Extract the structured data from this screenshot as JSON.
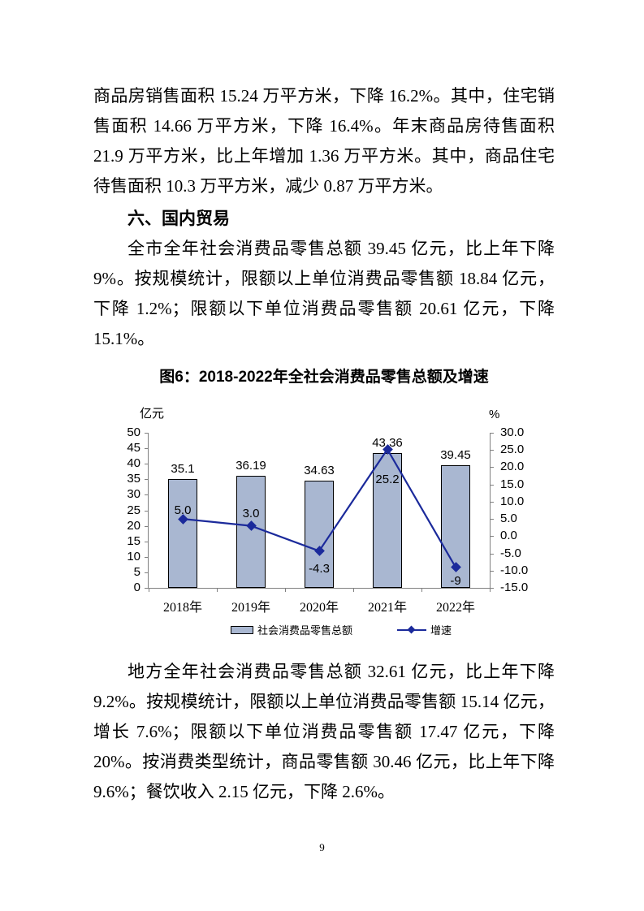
{
  "page": {
    "number": "9"
  },
  "document": {
    "para1": "商品房销售面积 15.24 万平方米，下降 16.2%。其中，住宅销售面积 14.66 万平方米，下降 16.4%。年末商品房待售面积 21.9 万平方米，比上年增加 1.36 万平方米。其中，商品住宅待售面积 10.3 万平方米，减少 0.87 万平方米。",
    "section_heading": "六、国内贸易",
    "para2": "全市全年社会消费品零售总额 39.45 亿元，比上年下降 9%。按规模统计，限额以上单位消费品零售额 18.84 亿元，下降 1.2%；限额以下单位消费品零售额 20.61 亿元，下降 15.1%。",
    "para3": "地方全年社会消费品零售总额 32.61 亿元，比上年下降 9.2%。按规模统计，限额以上单位消费品零售额 15.14 亿元，增长 7.6%；限额以下单位消费品零售额 17.47 亿元，下降 20%。按消费类型统计，商品零售额 30.46 亿元，比上年下降 9.6%；餐饮收入 2.15 亿元，下降 2.6%。"
  },
  "chart_data": {
    "type": "combo-bar-line",
    "title": "图6：2018-2022年全社会消费品零售总额及增速",
    "categories": [
      "2018年",
      "2019年",
      "2020年",
      "2021年",
      "2022年"
    ],
    "series": [
      {
        "name": "社会消费品零售总额",
        "type": "bar",
        "axis": "left",
        "values": [
          35.1,
          36.19,
          34.63,
          43.36,
          39.45
        ],
        "labels": [
          "35.1",
          "36.19",
          "34.63",
          "43.36",
          "39.45"
        ],
        "color": "#a9b7d1"
      },
      {
        "name": "增速",
        "type": "line",
        "axis": "right",
        "values": [
          5.0,
          3.0,
          -4.3,
          25.2,
          -9
        ],
        "labels": [
          "5.0",
          "3.0",
          "-4.3",
          "25.2",
          "-9"
        ],
        "label_side": [
          "above",
          "above",
          "below",
          "below",
          "below"
        ],
        "color": "#1b2a9b"
      }
    ],
    "left_axis": {
      "unit": "亿元",
      "min": 0,
      "max": 50,
      "step": 5,
      "ticks": [
        "0",
        "5",
        "10",
        "15",
        "20",
        "25",
        "30",
        "35",
        "40",
        "45",
        "50"
      ]
    },
    "right_axis": {
      "unit": "%",
      "min": -15,
      "max": 30,
      "step": 5,
      "ticks": [
        "-15.0",
        "-10.0",
        "-5.0",
        "0.0",
        "5.0",
        "10.0",
        "15.0",
        "20.0",
        "25.0",
        "30.0"
      ]
    },
    "legend_position": "bottom",
    "grid": false
  }
}
